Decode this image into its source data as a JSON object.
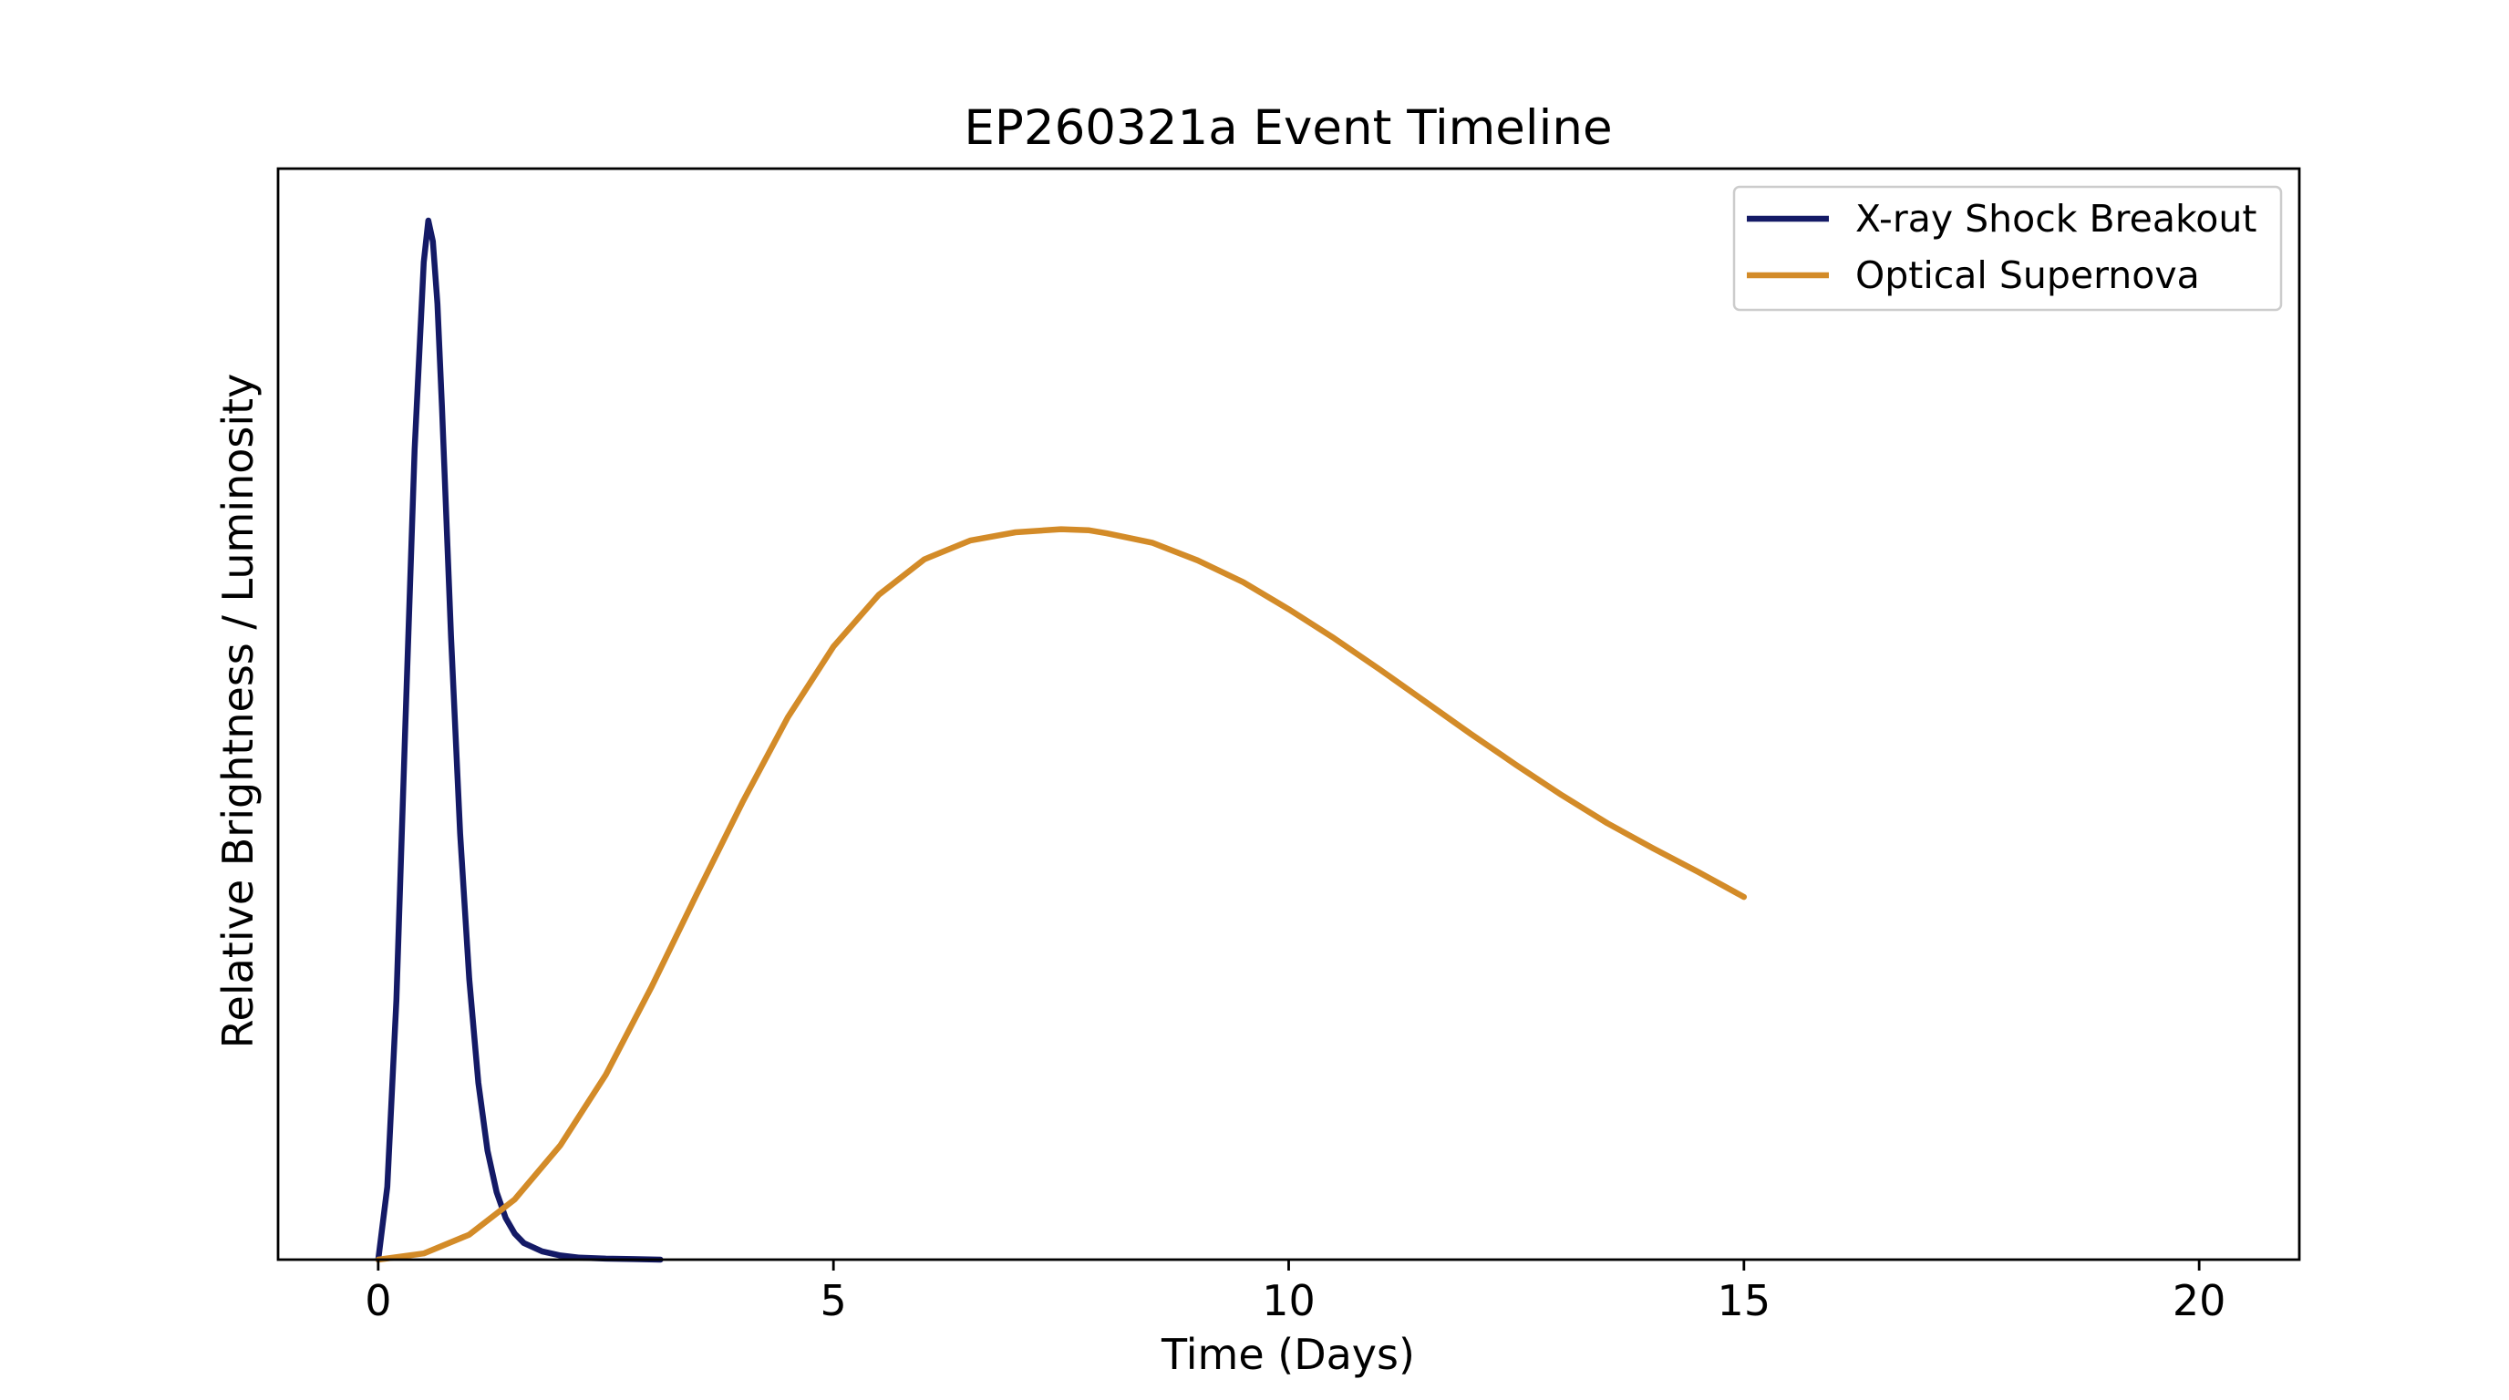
{
  "chart_data": {
    "type": "line",
    "title": "EP260321a Event Timeline",
    "xlabel": "Time (Days)",
    "ylabel": "Relative Brightness / Luminosity",
    "xlim": [
      -1.1,
      21.1
    ],
    "ylim": [
      0,
      1.05
    ],
    "x_ticks": [
      0,
      5,
      10,
      15,
      20
    ],
    "x_tick_labels": [
      "0",
      "5",
      "10",
      "15",
      "20"
    ],
    "y_ticks_shown": false,
    "grid": false,
    "legend_position": "top-right",
    "series": [
      {
        "name": "X-ray Shock Breakout",
        "color": "#141a66",
        "x": [
          0,
          0.1,
          0.2,
          0.3,
          0.4,
          0.5,
          0.55,
          0.6,
          0.65,
          0.7,
          0.8,
          0.9,
          1.0,
          1.1,
          1.2,
          1.3,
          1.4,
          1.5,
          1.6,
          1.8,
          2.0,
          2.2,
          2.5,
          2.8,
          3.1
        ],
        "y": [
          0,
          0.07,
          0.25,
          0.52,
          0.78,
          0.96,
          1.0,
          0.98,
          0.92,
          0.82,
          0.6,
          0.41,
          0.27,
          0.17,
          0.105,
          0.065,
          0.04,
          0.025,
          0.016,
          0.008,
          0.004,
          0.002,
          0.001,
          0.0005,
          0.0
        ]
      },
      {
        "name": "Optical Supernova",
        "color": "#d38b28",
        "x": [
          0,
          0.5,
          1,
          1.5,
          2,
          2.5,
          3,
          3.5,
          4,
          4.5,
          5,
          5.5,
          6,
          6.5,
          7,
          7.5,
          7.8,
          8,
          8.5,
          9,
          9.5,
          10,
          10.5,
          11,
          11.5,
          12,
          12.5,
          13,
          13.5,
          14,
          14.5,
          15
        ],
        "y": [
          0,
          0.006,
          0.024,
          0.058,
          0.11,
          0.178,
          0.262,
          0.352,
          0.44,
          0.522,
          0.59,
          0.64,
          0.674,
          0.692,
          0.7,
          0.703,
          0.702,
          0.699,
          0.69,
          0.673,
          0.652,
          0.626,
          0.598,
          0.568,
          0.537,
          0.506,
          0.476,
          0.447,
          0.42,
          0.396,
          0.373,
          0.349
        ]
      }
    ]
  }
}
